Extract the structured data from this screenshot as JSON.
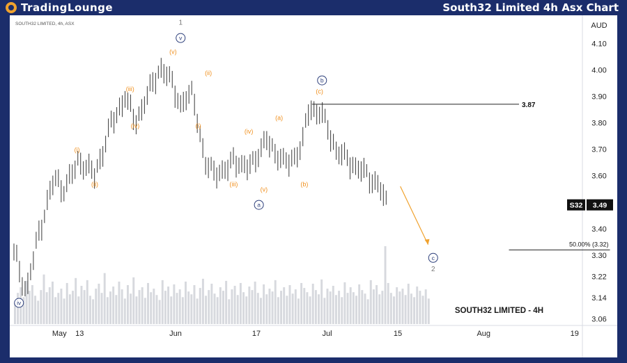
{
  "header": {
    "logo_text": "TradingLounge",
    "title": "South32 Limited 4h Asx Chart"
  },
  "chart_data": {
    "type": "candlestick",
    "symbol_line": "SOUTH32 LIMITED, 4h, ASX",
    "watermark": "SOUTH32 LIMITED - 4H",
    "currency": "AUD",
    "ticker": "S32",
    "last_price": "3.49",
    "ylim": [
      3.04,
      4.19
    ],
    "y_ticks": [
      "4.10",
      "4.00",
      "3.90",
      "3.80",
      "3.70",
      "3.60",
      "3.49",
      "3.40",
      "3.30",
      "3.22",
      "3.14",
      "3.06"
    ],
    "x_ticks": [
      {
        "label": "May",
        "day": 9
      },
      {
        "label": "13",
        "day": 13
      },
      {
        "label": "Jun",
        "day": 32
      },
      {
        "label": "17",
        "day": 48
      },
      {
        "label": "Jul",
        "day": 62
      },
      {
        "label": "15",
        "day": 76
      },
      {
        "label": "Aug",
        "day": 93
      },
      {
        "label": "19",
        "day": 111
      }
    ],
    "price_path": [
      {
        "day": 0,
        "price": 3.31
      },
      {
        "day": 2.5,
        "price": 3.16
      },
      {
        "day": 5,
        "price": 3.39
      },
      {
        "day": 8,
        "price": 3.59
      },
      {
        "day": 10,
        "price": 3.55
      },
      {
        "day": 13,
        "price": 3.66
      },
      {
        "day": 16,
        "price": 3.6
      },
      {
        "day": 19,
        "price": 3.78
      },
      {
        "day": 22,
        "price": 3.9
      },
      {
        "day": 24,
        "price": 3.8
      },
      {
        "day": 29,
        "price": 4.01
      },
      {
        "day": 31,
        "price": 3.96
      },
      {
        "day": 33,
        "price": 3.87
      },
      {
        "day": 35.5,
        "price": 3.91
      },
      {
        "day": 38,
        "price": 3.63
      },
      {
        "day": 42,
        "price": 3.61
      },
      {
        "day": 43.5,
        "price": 3.67
      },
      {
        "day": 46,
        "price": 3.62
      },
      {
        "day": 50,
        "price": 3.73
      },
      {
        "day": 54,
        "price": 3.64
      },
      {
        "day": 57,
        "price": 3.71
      },
      {
        "day": 58.5,
        "price": 3.86
      },
      {
        "day": 61,
        "price": 3.83
      },
      {
        "day": 64,
        "price": 3.69
      },
      {
        "day": 68,
        "price": 3.63
      },
      {
        "day": 72,
        "price": 3.57
      },
      {
        "day": 74,
        "price": 3.48
      }
    ],
    "projection": {
      "from_day": 76.5,
      "from_price": 3.56,
      "to_day": 82,
      "to_price": 3.34
    },
    "reference_lines": [
      {
        "label": "3.87",
        "price": 3.87,
        "from_day": 59,
        "to_day": 100
      },
      {
        "label": "50.00% (3.32)",
        "price": 3.32,
        "from_day": 98,
        "to_day": 118
      }
    ],
    "wave_labels_orange": [
      {
        "text": "(i)",
        "day": 12.5,
        "price": 3.69
      },
      {
        "text": "(ii)",
        "day": 16,
        "price": 3.56
      },
      {
        "text": "(iii)",
        "day": 23,
        "price": 3.92
      },
      {
        "text": "(iv)",
        "day": 24,
        "price": 3.78
      },
      {
        "text": "(v)",
        "day": 31.5,
        "price": 4.06
      },
      {
        "text": "(i)",
        "day": 36.5,
        "price": 3.78
      },
      {
        "text": "(ii)",
        "day": 38.5,
        "price": 3.98
      },
      {
        "text": "(iii)",
        "day": 43.5,
        "price": 3.56
      },
      {
        "text": "(iv)",
        "day": 46.5,
        "price": 3.76
      },
      {
        "text": "(v)",
        "day": 49.5,
        "price": 3.54
      },
      {
        "text": "(a)",
        "day": 52.5,
        "price": 3.81
      },
      {
        "text": "(b)",
        "day": 57.5,
        "price": 3.56
      },
      {
        "text": "(c)",
        "day": 60.5,
        "price": 3.91
      }
    ],
    "wave_labels_circled": [
      {
        "text": "iv",
        "day": 1,
        "price": 3.12
      },
      {
        "text": "v",
        "day": 33,
        "price": 4.12
      },
      {
        "text": "a",
        "day": 48.5,
        "price": 3.49
      },
      {
        "text": "b",
        "day": 61,
        "price": 3.96
      },
      {
        "text": "c",
        "day": 83,
        "price": 3.29
      }
    ],
    "wave_labels_gray": [
      {
        "text": "1",
        "day": 33,
        "price": 4.17
      },
      {
        "text": "2",
        "day": 83,
        "price": 3.24
      }
    ],
    "volume_bars": [
      30,
      44,
      52,
      38,
      61,
      47,
      55,
      40,
      33,
      48,
      70,
      45,
      52,
      60,
      38,
      44,
      50,
      36,
      58,
      42,
      47,
      65,
      39,
      54,
      48,
      62,
      40,
      35,
      50,
      57,
      44,
      72,
      38,
      46,
      53,
      41,
      60,
      49,
      36,
      55,
      43,
      66,
      39,
      48,
      52,
      37,
      58,
      45,
      50,
      41,
      34,
      62,
      47,
      53,
      39,
      56,
      44,
      49,
      38,
      60,
      46,
      42,
      55,
      36,
      51,
      64,
      40,
      48,
      57,
      43,
      38,
      52,
      47,
      61,
      35,
      49,
      54,
      41,
      58,
      45,
      39,
      53,
      48,
      60,
      44,
      37,
      56,
      42,
      50,
      46,
      62,
      38,
      47,
      52,
      40,
      55,
      43,
      49,
      36,
      58,
      51,
      45,
      39,
      57,
      48,
      42,
      63,
      37,
      50,
      46,
      54,
      41,
      47,
      38,
      59,
      44,
      52,
      45,
      40,
      56,
      48,
      43,
      35,
      62,
      49,
      55,
      42,
      47,
      110,
      58,
      44,
      39,
      52,
      46,
      50,
      41,
      57,
      43,
      38,
      53,
      47,
      40,
      49,
      36
    ]
  }
}
